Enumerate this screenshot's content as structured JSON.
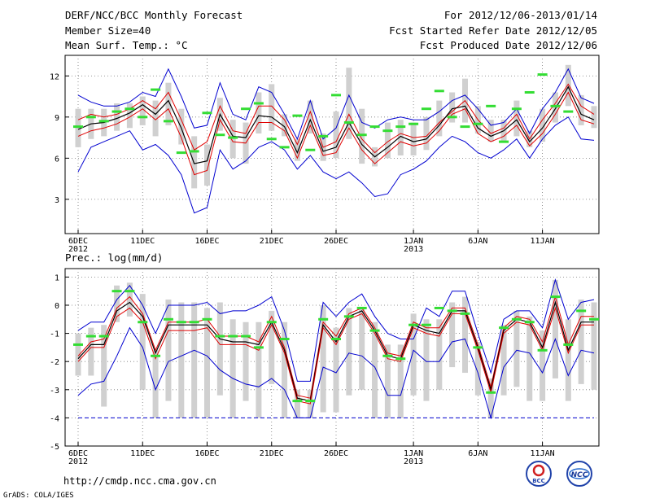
{
  "header": {
    "left_line1": "DERF/NCC/BCC Monthly Forecast",
    "left_line2": "Member Size=40",
    "left_line3": "Mean Surf. Temp.: °C",
    "right_line1": "For 2012/12/06-2013/01/14",
    "right_line2": "Fcst Started Refer Date 2012/12/05",
    "right_line3": "Fcst Produced Date 2012/12/06"
  },
  "footer": {
    "url": "http://cmdp.ncc.cma.gov.cn",
    "credit": "GrADS: COLA/IGES",
    "logo_bcc": "BCC",
    "logo_ncc": "NCC"
  },
  "colors": {
    "mean": "#000000",
    "spread": "#e00000",
    "extreme": "#0000d0",
    "box": "#d0d0d0",
    "obs": "#33dd33",
    "threshold": "#0000d0"
  },
  "chart_data": [
    {
      "type": "line",
      "title": "Mean Surf. Temp.: °C",
      "days": 40,
      "ylim": [
        0.5,
        13.5
      ],
      "yticks": [
        3,
        6,
        9,
        12
      ],
      "xticks": [
        {
          "day": 1,
          "label": "6DEC",
          "sub": "2012"
        },
        {
          "day": 6,
          "label": "11DEC",
          "sub": ""
        },
        {
          "day": 11,
          "label": "16DEC",
          "sub": ""
        },
        {
          "day": 16,
          "label": "21DEC",
          "sub": ""
        },
        {
          "day": 21,
          "label": "26DEC",
          "sub": ""
        },
        {
          "day": 27,
          "label": "1JAN",
          "sub": "2013"
        },
        {
          "day": 32,
          "label": "6JAN",
          "sub": ""
        },
        {
          "day": 37,
          "label": "11JAN",
          "sub": ""
        }
      ],
      "series": [
        {
          "name": "max",
          "color": "extreme",
          "values": [
            10.6,
            10.1,
            9.8,
            9.8,
            10.1,
            10.8,
            10.5,
            12.5,
            10.5,
            8.2,
            8.4,
            11.5,
            9.2,
            8.8,
            11.2,
            10.8,
            9.2,
            7.4,
            10.2,
            7.4,
            8.2,
            10.6,
            8.6,
            8.2,
            8.8,
            9.0,
            8.8,
            8.8,
            9.4,
            10.2,
            10.6,
            9.6,
            8.4,
            8.6,
            9.6,
            7.8,
            9.6,
            10.8,
            12.5,
            10.4,
            10.0
          ]
        },
        {
          "name": "upper",
          "color": "spread",
          "values": [
            8.8,
            9.2,
            9.0,
            9.2,
            9.6,
            10.2,
            9.6,
            10.8,
            8.8,
            6.6,
            7.2,
            9.8,
            8.0,
            7.8,
            9.8,
            9.8,
            8.8,
            7.0,
            9.4,
            6.8,
            7.2,
            9.2,
            7.4,
            6.4,
            7.2,
            7.8,
            7.5,
            7.6,
            8.6,
            9.4,
            10.2,
            8.8,
            7.8,
            8.2,
            9.2,
            7.4,
            8.8,
            10.0,
            11.4,
            9.8,
            9.2
          ]
        },
        {
          "name": "mean",
          "color": "mean",
          "values": [
            8.1,
            8.5,
            8.6,
            8.9,
            9.3,
            9.9,
            9.2,
            10.2,
            8.2,
            5.6,
            5.8,
            9.2,
            7.6,
            7.5,
            9.1,
            9.0,
            8.3,
            6.4,
            8.8,
            6.5,
            6.8,
            8.6,
            7.0,
            6.1,
            6.8,
            7.6,
            7.2,
            7.4,
            8.4,
            9.6,
            9.8,
            8.2,
            7.6,
            8.0,
            8.8,
            7.2,
            8.2,
            9.6,
            11.2,
            9.2,
            8.8
          ]
        },
        {
          "name": "lower",
          "color": "spread",
          "values": [
            7.6,
            8.0,
            8.2,
            8.5,
            9.0,
            9.6,
            8.8,
            9.6,
            7.5,
            4.8,
            5.1,
            8.8,
            7.2,
            7.1,
            8.6,
            8.6,
            8.0,
            6.0,
            8.4,
            6.2,
            6.4,
            8.2,
            6.6,
            5.6,
            6.4,
            7.2,
            6.9,
            7.1,
            8.0,
            9.2,
            9.6,
            7.8,
            7.2,
            7.6,
            8.4,
            6.9,
            7.8,
            9.2,
            10.8,
            8.8,
            8.5
          ]
        },
        {
          "name": "min",
          "color": "extreme",
          "values": [
            5.0,
            6.8,
            7.2,
            7.6,
            8.0,
            6.6,
            7.0,
            6.2,
            4.8,
            2.0,
            2.4,
            6.6,
            5.2,
            5.8,
            6.8,
            7.2,
            6.6,
            5.2,
            6.2,
            5.0,
            4.5,
            5.0,
            4.2,
            3.2,
            3.4,
            4.8,
            5.2,
            5.8,
            6.8,
            7.6,
            7.2,
            6.4,
            6.0,
            6.6,
            7.4,
            6.0,
            7.4,
            8.4,
            9.0,
            7.4,
            7.3
          ]
        }
      ],
      "boxes": [
        [
          6.8,
          9.6
        ],
        [
          7.4,
          9.6
        ],
        [
          7.6,
          9.6
        ],
        [
          8.0,
          10.0
        ],
        [
          8.2,
          10.0
        ],
        [
          8.4,
          10.5
        ],
        [
          7.6,
          10.2
        ],
        [
          8.4,
          11.5
        ],
        [
          7.0,
          9.6
        ],
        [
          3.8,
          7.6
        ],
        [
          4.0,
          7.0
        ],
        [
          8.0,
          10.4
        ],
        [
          6.0,
          8.8
        ],
        [
          5.6,
          8.6
        ],
        [
          7.8,
          10.8
        ],
        [
          8.0,
          11.4
        ],
        [
          7.6,
          9.2
        ],
        [
          5.8,
          7.4
        ],
        [
          7.8,
          10.2
        ],
        [
          5.8,
          7.8
        ],
        [
          6.0,
          9.4
        ],
        [
          7.4,
          12.6
        ],
        [
          5.6,
          9.6
        ],
        [
          5.4,
          6.8
        ],
        [
          6.0,
          8.6
        ],
        [
          6.2,
          8.8
        ],
        [
          6.2,
          8.6
        ],
        [
          6.6,
          9.0
        ],
        [
          7.6,
          10.2
        ],
        [
          8.6,
          10.8
        ],
        [
          8.6,
          11.8
        ],
        [
          7.8,
          9.8
        ],
        [
          7.2,
          8.8
        ],
        [
          7.2,
          8.8
        ],
        [
          7.6,
          10.2
        ],
        [
          6.8,
          8.0
        ],
        [
          7.2,
          9.6
        ],
        [
          8.6,
          10.8
        ],
        [
          9.8,
          12.8
        ],
        [
          8.4,
          10.6
        ],
        [
          8.2,
          9.8
        ]
      ],
      "obs": [
        8.3,
        9.0,
        8.7,
        9.4,
        9.6,
        9.0,
        11.0,
        8.7,
        6.4,
        6.5,
        9.3,
        7.7,
        7.5,
        9.6,
        10.0,
        7.4,
        6.8,
        9.1,
        6.6,
        7.6,
        10.6,
        8.6,
        7.7,
        8.3,
        8.0,
        8.3,
        8.5,
        9.6,
        10.9,
        9.0,
        8.3,
        8.5,
        9.8,
        7.2,
        9.6,
        10.8,
        12.1,
        9.8,
        9.4,
        null,
        null
      ]
    },
    {
      "type": "line",
      "title": "Prec.: log(mm/d)",
      "days": 40,
      "ylim": [
        -5,
        1.3
      ],
      "yticks": [
        -5,
        -4,
        -3,
        -2,
        -1,
        0,
        1
      ],
      "threshold": -4,
      "xticks": [
        {
          "day": 1,
          "label": "6DEC",
          "sub": "2012"
        },
        {
          "day": 6,
          "label": "11DEC",
          "sub": ""
        },
        {
          "day": 11,
          "label": "16DEC",
          "sub": ""
        },
        {
          "day": 16,
          "label": "21DEC",
          "sub": ""
        },
        {
          "day": 21,
          "label": "26DEC",
          "sub": ""
        },
        {
          "day": 27,
          "label": "1JAN",
          "sub": "2013"
        },
        {
          "day": 32,
          "label": "6JAN",
          "sub": ""
        },
        {
          "day": 37,
          "label": "11JAN",
          "sub": ""
        }
      ],
      "series": [
        {
          "name": "max",
          "color": "extreme",
          "values": [
            -0.9,
            -0.6,
            -0.6,
            0.2,
            0.7,
            0.0,
            -1.0,
            0.0,
            0.0,
            0.0,
            0.1,
            -0.3,
            -0.2,
            -0.2,
            0.0,
            0.3,
            -0.9,
            -2.7,
            -2.7,
            0.1,
            -0.4,
            0.1,
            0.4,
            -0.4,
            -1.0,
            -1.2,
            -1.2,
            -0.1,
            -0.4,
            0.5,
            0.5,
            -1.0,
            -2.4,
            -0.5,
            -0.2,
            -0.2,
            -0.8,
            0.9,
            -0.5,
            0.1,
            0.2
          ]
        },
        {
          "name": "upper",
          "color": "spread",
          "values": [
            -1.8,
            -1.3,
            -1.2,
            -0.1,
            0.3,
            -0.3,
            -1.6,
            -0.6,
            -0.6,
            -0.6,
            -0.5,
            -1.1,
            -1.1,
            -1.1,
            -1.3,
            -0.4,
            -1.5,
            -3.2,
            -3.3,
            -0.6,
            -1.1,
            -0.3,
            -0.1,
            -0.8,
            -1.7,
            -1.8,
            -0.6,
            -0.8,
            -0.8,
            -0.1,
            -0.1,
            -1.4,
            -2.9,
            -0.8,
            -0.4,
            -0.5,
            -1.3,
            0.3,
            -1.4,
            -0.4,
            -0.4
          ]
        },
        {
          "name": "mean",
          "color": "mean",
          "values": [
            -1.9,
            -1.4,
            -1.4,
            -0.2,
            0.1,
            -0.4,
            -1.7,
            -0.7,
            -0.7,
            -0.7,
            -0.7,
            -1.2,
            -1.3,
            -1.3,
            -1.4,
            -0.6,
            -1.6,
            -3.3,
            -3.4,
            -0.7,
            -1.3,
            -0.4,
            -0.2,
            -0.9,
            -1.8,
            -1.9,
            -0.7,
            -0.9,
            -1.0,
            -0.2,
            -0.2,
            -1.5,
            -3.0,
            -0.9,
            -0.5,
            -0.6,
            -1.5,
            0.1,
            -1.6,
            -0.6,
            -0.6
          ]
        },
        {
          "name": "lower",
          "color": "spread",
          "values": [
            -2.0,
            -1.5,
            -1.5,
            -0.4,
            -0.1,
            -0.6,
            -1.9,
            -0.9,
            -0.9,
            -0.9,
            -0.8,
            -1.4,
            -1.4,
            -1.4,
            -1.6,
            -0.7,
            -1.7,
            -3.4,
            -3.5,
            -0.8,
            -1.4,
            -0.5,
            -0.3,
            -1.0,
            -1.9,
            -2.0,
            -0.8,
            -1.0,
            -1.1,
            -0.3,
            -0.3,
            -1.6,
            -3.1,
            -1.0,
            -0.6,
            -0.7,
            -1.6,
            -0.1,
            -1.7,
            -0.7,
            -0.7
          ]
        },
        {
          "name": "min",
          "color": "extreme",
          "values": [
            -3.2,
            -2.8,
            -2.7,
            -1.8,
            -0.8,
            -1.5,
            -3.0,
            -2.0,
            -1.8,
            -1.6,
            -1.8,
            -2.3,
            -2.6,
            -2.8,
            -2.9,
            -2.6,
            -3.0,
            -4.0,
            -4.0,
            -2.2,
            -2.4,
            -1.7,
            -1.8,
            -2.2,
            -3.2,
            -3.2,
            -1.6,
            -2.0,
            -2.0,
            -1.3,
            -1.2,
            -2.4,
            -4.0,
            -2.2,
            -1.6,
            -1.7,
            -2.4,
            -1.2,
            -2.5,
            -1.6,
            -1.7
          ]
        }
      ],
      "boxes": [
        [
          -2.5,
          -1.0
        ],
        [
          -2.5,
          -0.8
        ],
        [
          -3.6,
          -0.7
        ],
        [
          -0.6,
          0.7
        ],
        [
          -0.4,
          0.8
        ],
        [
          -3.0,
          0.4
        ],
        [
          -4.0,
          -1.6
        ],
        [
          -3.4,
          0.2
        ],
        [
          -4.0,
          0.1
        ],
        [
          -4.0,
          0.1
        ],
        [
          -4.0,
          -0.1
        ],
        [
          -3.2,
          0.1
        ],
        [
          -4.0,
          -0.5
        ],
        [
          -3.4,
          -0.6
        ],
        [
          -4.0,
          -0.6
        ],
        [
          -2.8,
          -0.2
        ],
        [
          -4.0,
          -0.6
        ],
        [
          -4.0,
          -3.0
        ],
        [
          -4.0,
          -3.0
        ],
        [
          -3.8,
          0.0
        ],
        [
          -3.8,
          -0.8
        ],
        [
          -3.2,
          -0.1
        ],
        [
          -3.0,
          -0.1
        ],
        [
          -4.0,
          -0.6
        ],
        [
          -4.0,
          -1.4
        ],
        [
          -4.0,
          -1.4
        ],
        [
          -3.2,
          -0.3
        ],
        [
          -3.4,
          -0.5
        ],
        [
          -3.0,
          -0.5
        ],
        [
          -2.2,
          0.1
        ],
        [
          -2.4,
          0.3
        ],
        [
          -3.2,
          -1.3
        ],
        [
          -4.0,
          -2.6
        ],
        [
          -3.2,
          -0.7
        ],
        [
          -2.9,
          -0.2
        ],
        [
          -3.4,
          -0.4
        ],
        [
          -3.4,
          -0.9
        ],
        [
          -2.6,
          0.9
        ],
        [
          -3.4,
          -0.5
        ],
        [
          -2.8,
          0.2
        ],
        [
          -3.0,
          0.1
        ]
      ],
      "obs": [
        -1.4,
        -1.1,
        -1.1,
        0.5,
        0.5,
        -0.6,
        -1.8,
        -0.5,
        -0.6,
        -0.6,
        -0.5,
        -1.1,
        -1.1,
        -1.1,
        -1.5,
        -0.6,
        -1.2,
        -3.4,
        -3.4,
        -0.5,
        -1.2,
        -0.4,
        -0.1,
        -0.9,
        -1.8,
        -1.9,
        -0.7,
        -0.7,
        -0.1,
        -0.2,
        -0.3,
        -1.5,
        -3.1,
        -0.8,
        -0.5,
        -0.6,
        -1.6,
        0.3,
        -1.4,
        -0.2,
        -0.5
      ]
    }
  ]
}
